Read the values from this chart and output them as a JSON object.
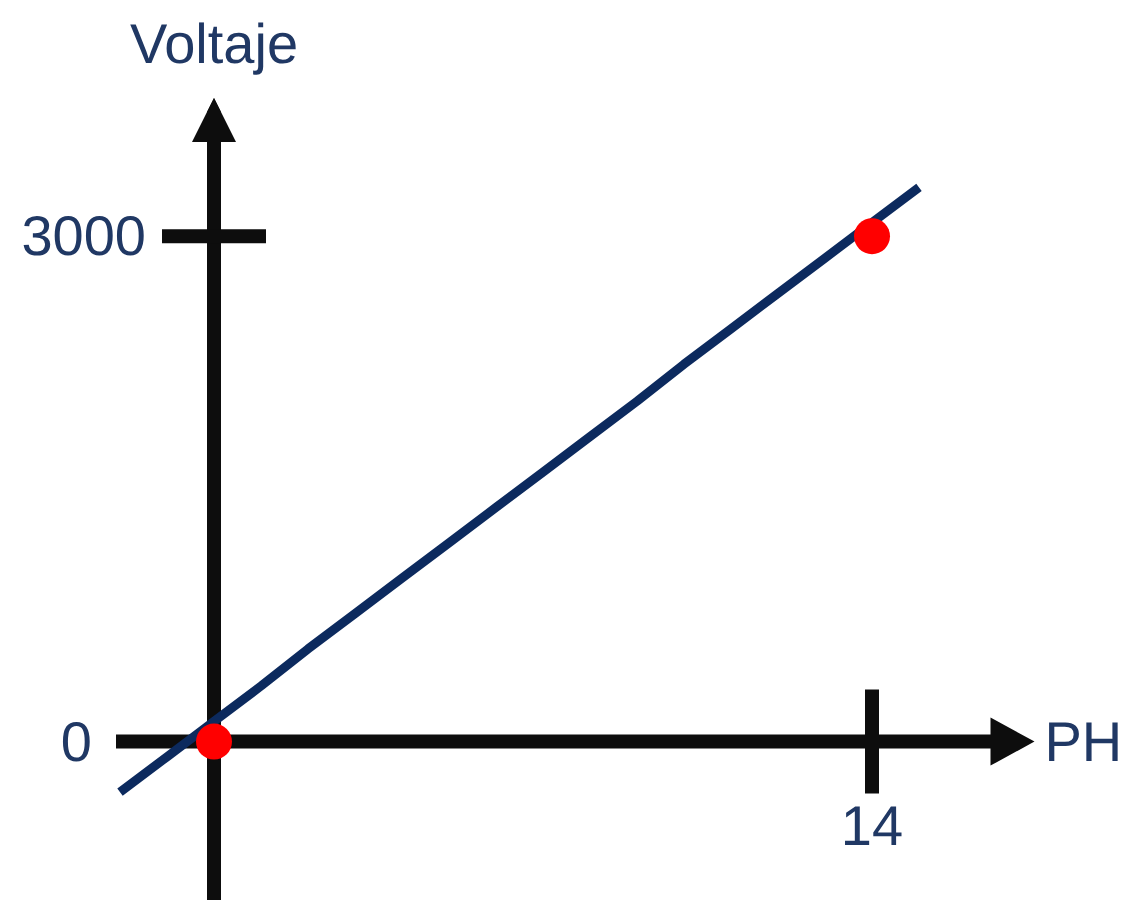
{
  "chart_data": {
    "type": "scatter",
    "xlabel": "PH",
    "ylabel": "Voltaje",
    "categories": [
      null,
      null,
      null,
      null,
      null,
      null,
      null,
      null,
      null,
      null,
      null,
      null,
      null,
      null,
      null,
      null,
      "14",
      null,
      null,
      null
    ],
    "ylim": [
      -940,
      3820
    ],
    "yticks": [
      0,
      3000
    ],
    "marker": "circle",
    "series": [
      {
        "type": "scatter",
        "color": "#ff0000",
        "values": [
          null,
          null,
          0,
          null,
          null,
          null,
          null,
          null,
          null,
          null,
          null,
          null,
          null,
          null,
          null,
          null,
          3000,
          null,
          null,
          null
        ]
      },
      {
        "type": "line",
        "color": "#0c2a5e",
        "marker": "none",
        "values": [
          -300,
          -90,
          120,
          330,
          550,
          760,
          970,
          1180,
          1390,
          1600,
          1810,
          2020,
          2240,
          2450,
          2660,
          2870,
          3080,
          3290,
          null,
          null
        ]
      }
    ]
  }
}
